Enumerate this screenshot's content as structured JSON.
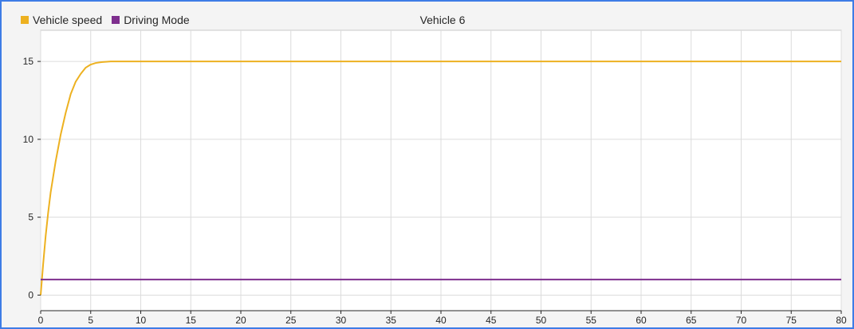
{
  "chart_data": {
    "type": "line",
    "title": "Vehicle 6",
    "xlabel": "",
    "ylabel": "",
    "xlim": [
      0,
      80
    ],
    "ylim": [
      -1,
      17
    ],
    "grid": true,
    "legend_position": "top-left",
    "x_ticks": [
      "0",
      "5",
      "10",
      "15",
      "20",
      "25",
      "30",
      "35",
      "40",
      "45",
      "50",
      "55",
      "60",
      "65",
      "70",
      "75",
      "80"
    ],
    "y_ticks": [
      "0",
      "5",
      "10",
      "15"
    ],
    "series": [
      {
        "name": "Vehicle speed",
        "color": "#edb120",
        "x": [
          0,
          0.25,
          0.5,
          0.75,
          1,
          1.5,
          2,
          2.5,
          3,
          3.5,
          4,
          4.5,
          5,
          5.5,
          6,
          7,
          8,
          10,
          20,
          40,
          60,
          80
        ],
        "y": [
          0,
          2.0,
          3.8,
          5.3,
          6.6,
          8.6,
          10.3,
          11.7,
          12.9,
          13.7,
          14.2,
          14.6,
          14.8,
          14.9,
          14.95,
          15,
          15,
          15,
          15,
          15,
          15,
          15
        ]
      },
      {
        "name": "Driving Mode",
        "color": "#7e2f8e",
        "x": [
          0,
          80
        ],
        "y": [
          1,
          1
        ]
      }
    ]
  }
}
